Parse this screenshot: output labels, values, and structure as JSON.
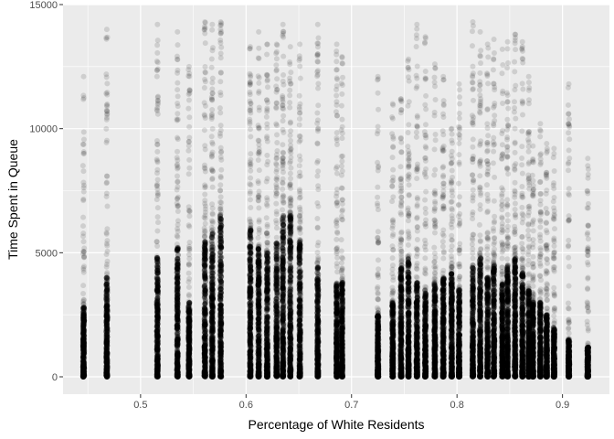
{
  "chart_data": {
    "type": "scatter",
    "title": "",
    "xlabel": "Percentage of White Residents",
    "ylabel": "Time Spent in Queue",
    "xlim": [
      0.4265,
      0.9445
    ],
    "ylim": [
      -700,
      15000
    ],
    "x_ticks": [
      0.5,
      0.6,
      0.7,
      0.8,
      0.9
    ],
    "x_tick_labels": [
      "0.5",
      "0.6",
      "0.7",
      "0.8",
      "0.9"
    ],
    "y_ticks": [
      0,
      5000,
      10000,
      15000
    ],
    "y_tick_labels": [
      "0",
      "5000",
      "10000",
      "15000"
    ],
    "grid": true,
    "legend": "none",
    "point_color": "#000000",
    "point_alpha": 0.12,
    "panel_background": "#ebebeb",
    "grid_color": "#ffffff",
    "x_groups": [
      0.446,
      0.468,
      0.516,
      0.535,
      0.546,
      0.561,
      0.568,
      0.576,
      0.604,
      0.612,
      0.62,
      0.629,
      0.635,
      0.642,
      0.651,
      0.668,
      0.686,
      0.691,
      0.725,
      0.739,
      0.747,
      0.754,
      0.762,
      0.77,
      0.779,
      0.787,
      0.795,
      0.802,
      0.815,
      0.822,
      0.829,
      0.835,
      0.843,
      0.848,
      0.855,
      0.862,
      0.868,
      0.872,
      0.879,
      0.885,
      0.892,
      0.906,
      0.924
    ],
    "group_max_y": [
      12100,
      14000,
      14200,
      13900,
      12500,
      14300,
      14200,
      14300,
      13300,
      13900,
      13400,
      13400,
      14200,
      13300,
      13400,
      14200,
      13400,
      12900,
      12100,
      11000,
      11200,
      12800,
      14200,
      13700,
      12600,
      12100,
      10000,
      11800,
      14300,
      13900,
      13400,
      13600,
      13200,
      13500,
      13800,
      13500,
      12100,
      9300,
      10200,
      9400,
      9200,
      11800,
      8800
    ],
    "group_density_y": [
      2800,
      4000,
      4800,
      5200,
      3000,
      5500,
      5800,
      6500,
      6000,
      5200,
      5000,
      5500,
      6500,
      6500,
      5500,
      4500,
      3800,
      3800,
      2500,
      3000,
      4500,
      4800,
      3800,
      3500,
      3800,
      4000,
      4200,
      3500,
      4500,
      4800,
      4000,
      4500,
      3800,
      4500,
      4800,
      4200,
      3500,
      3000,
      3000,
      2500,
      2000,
      1500,
      1200
    ]
  }
}
